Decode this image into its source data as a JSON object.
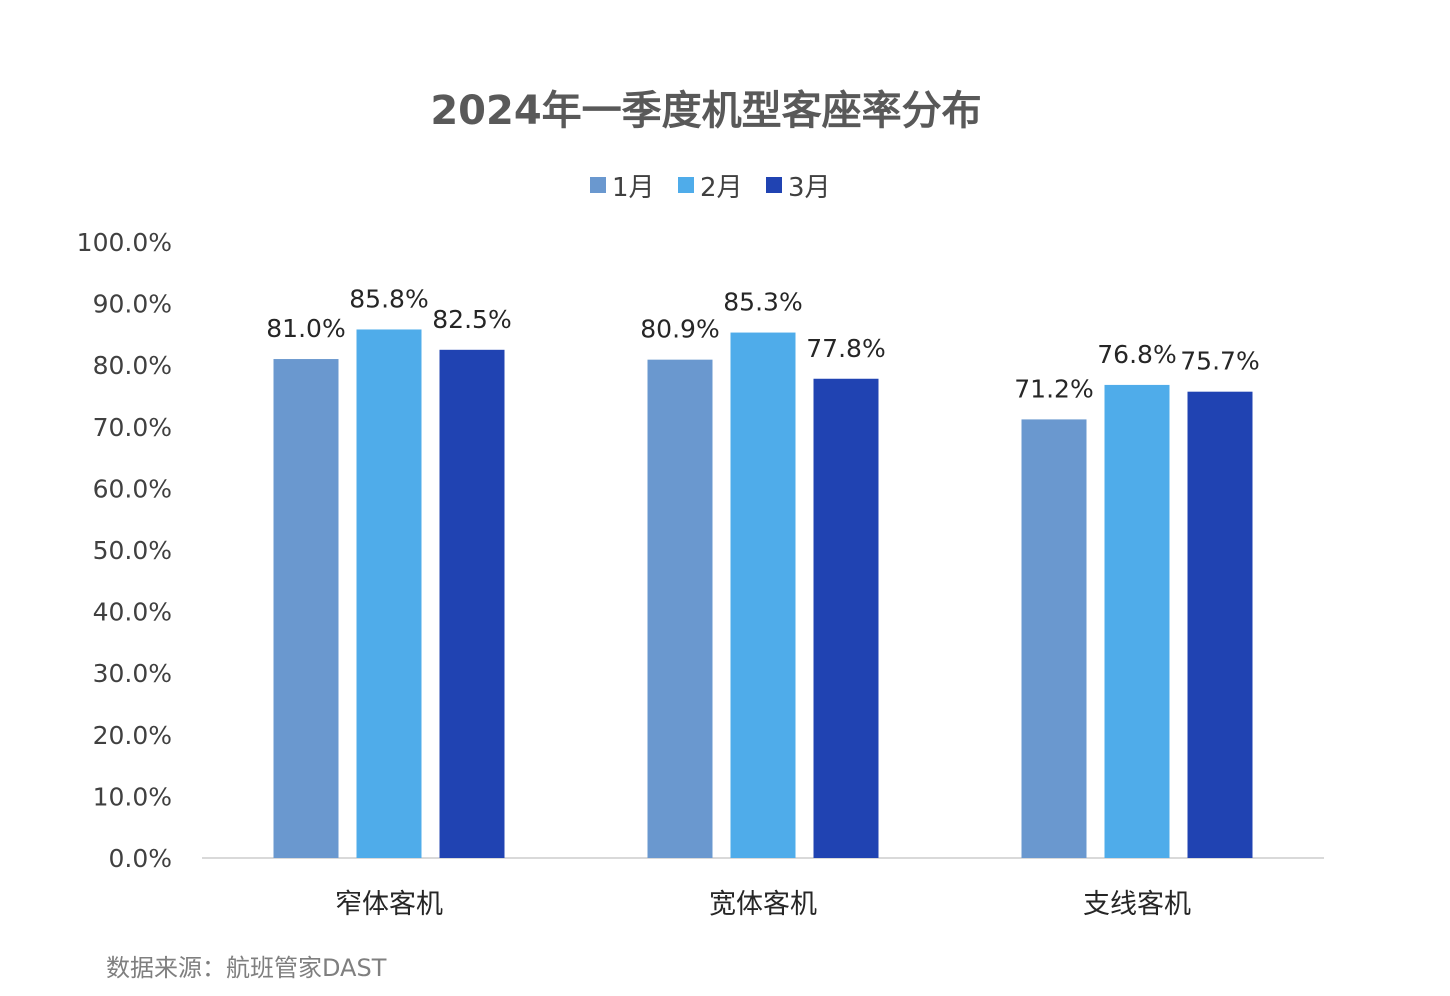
{
  "chart_data": {
    "type": "bar",
    "title": "2024年一季度机型客座率分布",
    "categories": [
      "窄体客机",
      "宽体客机",
      "支线客机"
    ],
    "series": [
      {
        "name": "1月",
        "values": [
          81.0,
          80.9,
          71.2
        ],
        "color": "#6a98cf"
      },
      {
        "name": "2月",
        "values": [
          85.8,
          85.3,
          76.8
        ],
        "color": "#4facea"
      },
      {
        "name": "3月",
        "values": [
          82.5,
          77.8,
          75.7
        ],
        "color": "#2043b2"
      }
    ],
    "data_labels": [
      [
        "81.0%",
        "80.9%",
        "71.2%"
      ],
      [
        "85.8%",
        "85.3%",
        "76.8%"
      ],
      [
        "82.5%",
        "77.8%",
        "75.7%"
      ]
    ],
    "y_ticks": [
      "0.0%",
      "10.0%",
      "20.0%",
      "30.0%",
      "40.0%",
      "50.0%",
      "60.0%",
      "70.0%",
      "80.0%",
      "90.0%",
      "100.0%"
    ],
    "ylim": [
      0,
      100
    ],
    "xlabel": "",
    "ylabel": "",
    "grid": false,
    "legend_position": "top-center"
  },
  "source": "数据来源：航班管家DAST"
}
